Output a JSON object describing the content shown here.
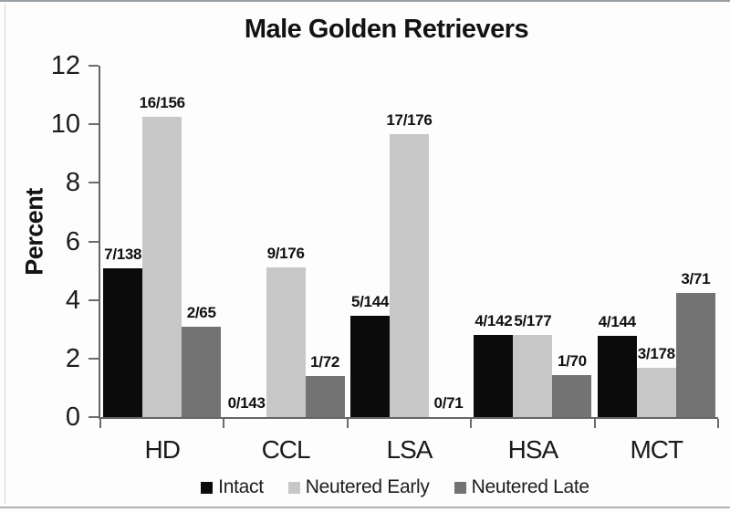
{
  "chart_data": {
    "type": "bar",
    "title": "Male Golden Retrievers",
    "ylabel": "Percent",
    "xlabel": "",
    "ylim": [
      0,
      12
    ],
    "yticks": [
      0,
      2,
      4,
      6,
      8,
      10,
      12
    ],
    "grid": false,
    "legend_position": "bottom",
    "categories": [
      "HD",
      "CCL",
      "LSA",
      "HSA",
      "MCT"
    ],
    "series": [
      {
        "name": "Intact",
        "color": "#0b0b0b",
        "values": [
          5.07,
          0.0,
          3.47,
          2.82,
          2.78
        ],
        "labels": [
          "7/138",
          "0/143",
          "5/144",
          "4/142",
          "4/144"
        ]
      },
      {
        "name": "Neutered Early",
        "color": "#c7c7c7",
        "values": [
          10.26,
          5.11,
          9.66,
          2.82,
          1.69
        ],
        "labels": [
          "16/156",
          "9/176",
          "17/176",
          "5/177",
          "3/178"
        ]
      },
      {
        "name": "Neutered Late",
        "color": "#737373",
        "values": [
          3.08,
          1.39,
          0.0,
          1.43,
          4.23
        ],
        "labels": [
          "2/65",
          "1/72",
          "0/71",
          "1/70",
          "3/71"
        ]
      }
    ]
  }
}
